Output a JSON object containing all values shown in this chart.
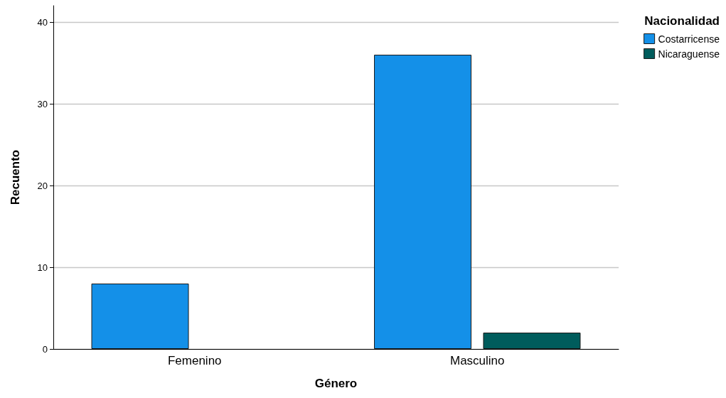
{
  "chart_data": {
    "type": "bar",
    "xlabel": "Género",
    "ylabel": "Recuento",
    "legend_title": "Nacionalidad",
    "categories": [
      "Femenino",
      "Masculino"
    ],
    "series": [
      {
        "name": "Costarricense",
        "color": "#1490e8",
        "values": [
          8,
          36
        ]
      },
      {
        "name": "Nicaraguense",
        "color": "#005c5c",
        "values": [
          null,
          2
        ]
      }
    ],
    "ylim": [
      0,
      42
    ],
    "yticks": [
      0,
      10,
      20,
      30,
      40
    ],
    "grid": "y",
    "legend": "top right"
  }
}
